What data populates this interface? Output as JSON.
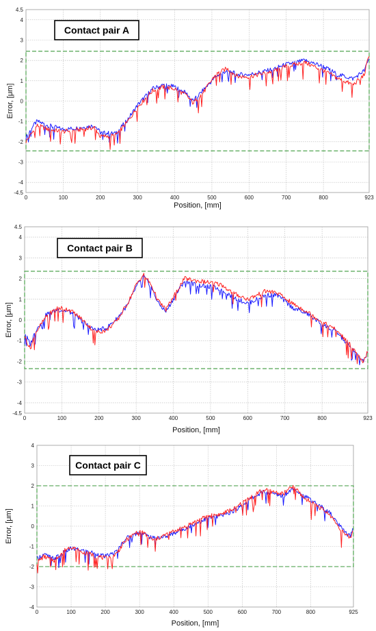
{
  "chart_data": [
    {
      "type": "line",
      "title": "Contact pair A",
      "xlabel": "Position, [mm]",
      "ylabel": "Error, [μm]",
      "xlim": [
        0,
        923
      ],
      "ylim": [
        -4.5,
        4.5
      ],
      "x_ticks": [
        "0",
        "100",
        "200",
        "300",
        "400",
        "500",
        "600",
        "700",
        "800",
        "923"
      ],
      "y_ticks": [
        "4.5",
        "4",
        "3",
        "2",
        "1",
        "0",
        "-1",
        "-2",
        "-3",
        "-4",
        "-4.5"
      ],
      "tolerance_band": [
        -2.45,
        2.45
      ],
      "grid": true,
      "colors": {
        "series_1": "#1a1aff",
        "series_2": "#ff2020",
        "band": "#3c9a3c"
      },
      "series": [
        {
          "values": [
            [
              0,
              -1.8
            ],
            [
              15,
              -1.3
            ],
            [
              30,
              -1.0
            ],
            [
              60,
              -1.2
            ],
            [
              100,
              -1.4
            ],
            [
              150,
              -1.3
            ],
            [
              185,
              -1.2
            ],
            [
              200,
              -1.55
            ],
            [
              240,
              -1.6
            ],
            [
              270,
              -1.0
            ],
            [
              300,
              -0.2
            ],
            [
              340,
              0.6
            ],
            [
              370,
              0.8
            ],
            [
              400,
              0.7
            ],
            [
              430,
              0.4
            ],
            [
              450,
              0.0
            ],
            [
              480,
              0.6
            ],
            [
              510,
              1.2
            ],
            [
              540,
              1.5
            ],
            [
              570,
              1.3
            ],
            [
              600,
              1.3
            ],
            [
              650,
              1.5
            ],
            [
              700,
              1.8
            ],
            [
              750,
              2.0
            ],
            [
              800,
              1.7
            ],
            [
              840,
              1.3
            ],
            [
              880,
              1.1
            ],
            [
              910,
              1.5
            ],
            [
              923,
              2.1
            ]
          ]
        },
        {
          "values": [
            [
              0,
              -2.0
            ],
            [
              15,
              -1.6
            ],
            [
              30,
              -1.2
            ],
            [
              60,
              -1.4
            ],
            [
              100,
              -1.5
            ],
            [
              150,
              -1.4
            ],
            [
              185,
              -1.3
            ],
            [
              200,
              -1.75
            ],
            [
              240,
              -1.7
            ],
            [
              270,
              -1.1
            ],
            [
              300,
              -0.3
            ],
            [
              340,
              0.5
            ],
            [
              370,
              0.7
            ],
            [
              400,
              0.6
            ],
            [
              430,
              0.3
            ],
            [
              450,
              -0.1
            ],
            [
              480,
              0.5
            ],
            [
              510,
              1.3
            ],
            [
              540,
              1.6
            ],
            [
              570,
              1.2
            ],
            [
              600,
              1.2
            ],
            [
              650,
              1.4
            ],
            [
              700,
              1.7
            ],
            [
              750,
              1.9
            ],
            [
              800,
              1.5
            ],
            [
              840,
              1.1
            ],
            [
              880,
              0.8
            ],
            [
              910,
              1.3
            ],
            [
              923,
              2.3
            ]
          ]
        }
      ]
    },
    {
      "type": "line",
      "title": "Contact pair B",
      "xlabel": "Position, [mm]",
      "ylabel": "Error, [μm]",
      "xlim": [
        0,
        923
      ],
      "ylim": [
        -4.5,
        4.5
      ],
      "x_ticks": [
        "0",
        "100",
        "200",
        "300",
        "400",
        "500",
        "600",
        "700",
        "800",
        "923"
      ],
      "y_ticks": [
        "4.5",
        "4",
        "3",
        "2",
        "1",
        "0",
        "-1",
        "-2",
        "-3",
        "-4",
        "-4.5"
      ],
      "tolerance_band": [
        -2.35,
        2.35
      ],
      "grid": true,
      "colors": {
        "series_1": "#1a1aff",
        "series_2": "#ff2020",
        "band": "#3c9a3c"
      },
      "series": [
        {
          "values": [
            [
              0,
              -0.6
            ],
            [
              15,
              -1.2
            ],
            [
              30,
              -0.5
            ],
            [
              60,
              0.3
            ],
            [
              90,
              0.5
            ],
            [
              120,
              0.4
            ],
            [
              150,
              0.0
            ],
            [
              190,
              -0.5
            ],
            [
              220,
              -0.4
            ],
            [
              250,
              0.1
            ],
            [
              280,
              0.8
            ],
            [
              300,
              1.6
            ],
            [
              320,
              2.1
            ],
            [
              340,
              1.6
            ],
            [
              360,
              0.8
            ],
            [
              380,
              0.4
            ],
            [
              400,
              1.0
            ],
            [
              430,
              1.9
            ],
            [
              460,
              1.7
            ],
            [
              500,
              1.6
            ],
            [
              530,
              1.5
            ],
            [
              560,
              1.1
            ],
            [
              600,
              0.8
            ],
            [
              650,
              1.2
            ],
            [
              680,
              1.2
            ],
            [
              720,
              0.6
            ],
            [
              760,
              0.3
            ],
            [
              800,
              -0.2
            ],
            [
              840,
              -0.6
            ],
            [
              880,
              -1.4
            ],
            [
              910,
              -2.0
            ],
            [
              923,
              -1.6
            ]
          ]
        },
        {
          "values": [
            [
              0,
              -0.8
            ],
            [
              15,
              -1.4
            ],
            [
              30,
              -0.6
            ],
            [
              60,
              0.2
            ],
            [
              90,
              0.6
            ],
            [
              120,
              0.5
            ],
            [
              150,
              0.1
            ],
            [
              190,
              -0.6
            ],
            [
              220,
              -0.5
            ],
            [
              250,
              0.0
            ],
            [
              280,
              0.9
            ],
            [
              300,
              1.7
            ],
            [
              320,
              2.2
            ],
            [
              340,
              1.7
            ],
            [
              360,
              0.9
            ],
            [
              380,
              0.5
            ],
            [
              400,
              1.1
            ],
            [
              430,
              2.0
            ],
            [
              460,
              1.9
            ],
            [
              500,
              1.8
            ],
            [
              530,
              1.7
            ],
            [
              560,
              1.3
            ],
            [
              600,
              1.0
            ],
            [
              650,
              1.4
            ],
            [
              680,
              1.3
            ],
            [
              720,
              0.8
            ],
            [
              760,
              0.4
            ],
            [
              800,
              -0.1
            ],
            [
              840,
              -0.5
            ],
            [
              880,
              -1.3
            ],
            [
              910,
              -2.1
            ],
            [
              923,
              -1.5
            ]
          ]
        }
      ]
    },
    {
      "type": "line",
      "title": "Contact pair C",
      "xlabel": "Position, [mm]",
      "ylabel": "Error, [μm]",
      "xlim": [
        0,
        925
      ],
      "ylim": [
        -4,
        4
      ],
      "x_ticks": [
        "0",
        "100",
        "200",
        "300",
        "400",
        "500",
        "600",
        "700",
        "800",
        "925"
      ],
      "y_ticks": [
        "4",
        "3",
        "2",
        "1",
        "0",
        "-1",
        "-2",
        "-3",
        "-4"
      ],
      "tolerance_band": [
        -2.0,
        2.0
      ],
      "grid": true,
      "colors": {
        "series_1": "#1a1aff",
        "series_2": "#ff2020",
        "band": "#3c9a3c"
      },
      "series": [
        {
          "values": [
            [
              0,
              -1.6
            ],
            [
              20,
              -1.4
            ],
            [
              50,
              -1.6
            ],
            [
              80,
              -1.3
            ],
            [
              100,
              -1.1
            ],
            [
              130,
              -1.2
            ],
            [
              160,
              -1.3
            ],
            [
              200,
              -1.5
            ],
            [
              230,
              -1.3
            ],
            [
              260,
              -0.6
            ],
            [
              300,
              -0.3
            ],
            [
              340,
              -0.6
            ],
            [
              380,
              -0.5
            ],
            [
              420,
              -0.2
            ],
            [
              460,
              0.1
            ],
            [
              500,
              0.4
            ],
            [
              540,
              0.5
            ],
            [
              580,
              0.8
            ],
            [
              620,
              1.3
            ],
            [
              660,
              1.7
            ],
            [
              690,
              1.6
            ],
            [
              720,
              1.5
            ],
            [
              750,
              1.9
            ],
            [
              780,
              1.5
            ],
            [
              820,
              1.1
            ],
            [
              860,
              0.6
            ],
            [
              880,
              0.1
            ],
            [
              900,
              -0.3
            ],
            [
              915,
              -0.5
            ],
            [
              925,
              -0.1
            ]
          ]
        },
        {
          "values": [
            [
              0,
              -1.8
            ],
            [
              20,
              -1.5
            ],
            [
              50,
              -1.7
            ],
            [
              80,
              -1.2
            ],
            [
              100,
              -1.0
            ],
            [
              130,
              -1.3
            ],
            [
              160,
              -1.4
            ],
            [
              200,
              -1.6
            ],
            [
              230,
              -1.4
            ],
            [
              260,
              -0.7
            ],
            [
              300,
              -0.2
            ],
            [
              340,
              -0.7
            ],
            [
              380,
              -0.4
            ],
            [
              420,
              -0.1
            ],
            [
              460,
              0.2
            ],
            [
              500,
              0.5
            ],
            [
              540,
              0.6
            ],
            [
              580,
              0.9
            ],
            [
              620,
              1.4
            ],
            [
              660,
              1.8
            ],
            [
              690,
              1.7
            ],
            [
              720,
              1.6
            ],
            [
              750,
              2.0
            ],
            [
              780,
              1.4
            ],
            [
              820,
              1.0
            ],
            [
              860,
              0.5
            ],
            [
              880,
              0.0
            ],
            [
              900,
              -0.4
            ],
            [
              915,
              -0.6
            ],
            [
              925,
              -0.2
            ]
          ]
        }
      ]
    }
  ]
}
